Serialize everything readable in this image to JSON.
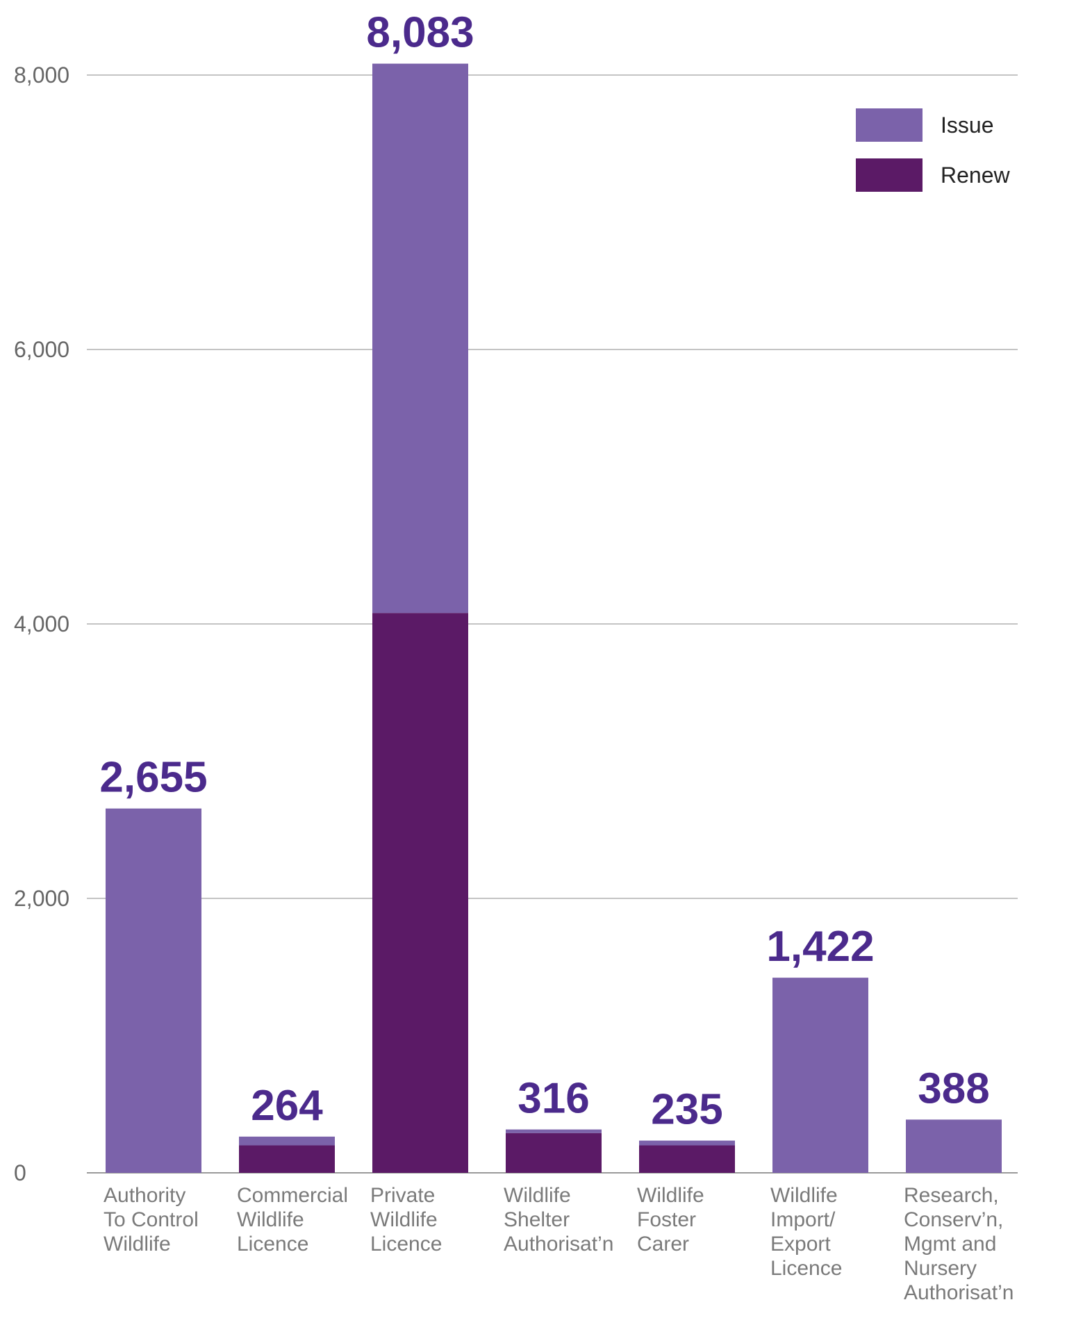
{
  "chart_data": {
    "type": "bar",
    "stacked": true,
    "categories": [
      [
        "Authority",
        "To Control",
        "Wildlife"
      ],
      [
        "Commercial",
        "Wildlife",
        "Licence"
      ],
      [
        "Private",
        "Wildlife",
        "Licence"
      ],
      [
        "Wildlife",
        "Shelter",
        "Authorisat’n"
      ],
      [
        "Wildlife",
        "Foster",
        "Carer"
      ],
      [
        "Wildlife",
        "Import/",
        "Export",
        "Licence"
      ],
      [
        "Research,",
        "Conserv’n,",
        "Mgmt and",
        "Nursery",
        "Authorisat’n"
      ]
    ],
    "series": [
      {
        "name": "Renew",
        "color": "#5b1a66",
        "values": [
          0,
          200,
          4080,
          290,
          200,
          0,
          0
        ]
      },
      {
        "name": "Issue",
        "color": "#7b62aa",
        "values": [
          2655,
          64,
          4003,
          26,
          35,
          1422,
          388
        ]
      }
    ],
    "totals": [
      "2,655",
      "264",
      "8,083",
      "316",
      "235",
      "1,422",
      "388"
    ],
    "ylim": [
      0,
      8000
    ],
    "yticks": [
      0,
      2000,
      4000,
      6000,
      8000
    ],
    "ytick_labels": [
      "0",
      "2,000",
      "4,000",
      "6,000",
      "8,000"
    ],
    "legend": {
      "position": "top-right",
      "order": [
        "Issue",
        "Renew"
      ]
    },
    "grid": true,
    "total_label_color": "#4b2a8c",
    "title": "",
    "xlabel": "",
    "ylabel": ""
  }
}
